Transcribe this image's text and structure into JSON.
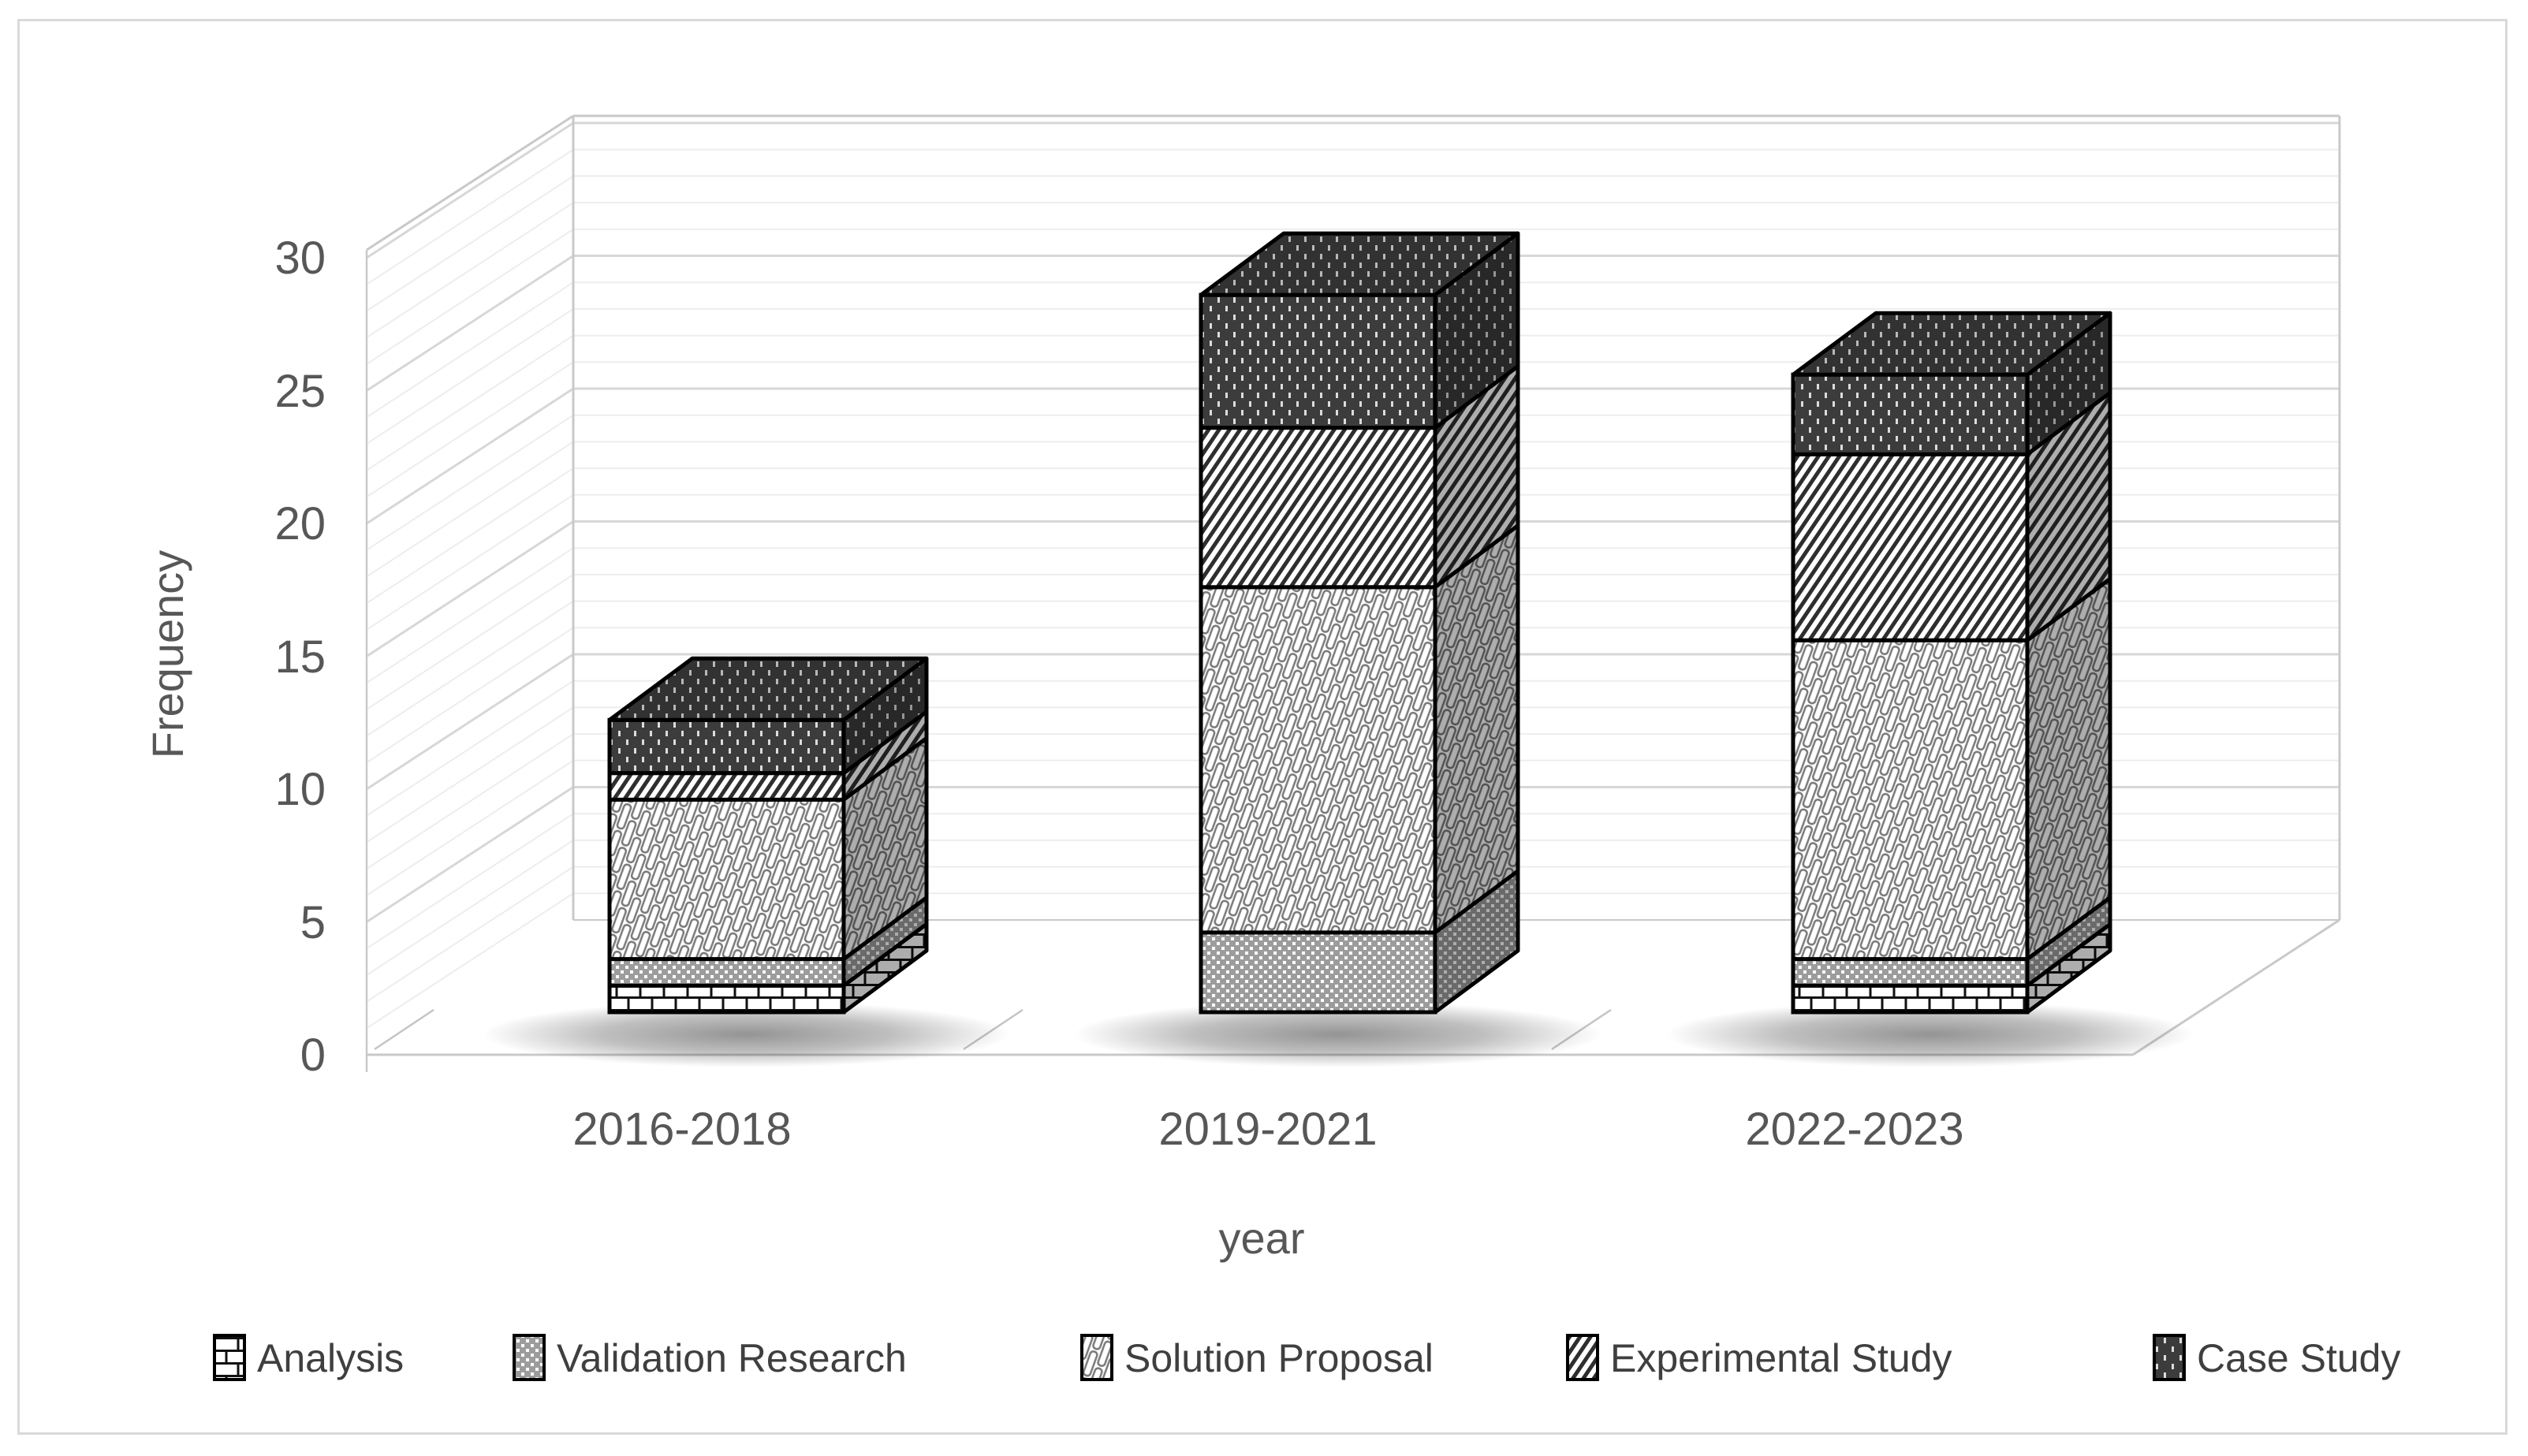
{
  "chart_data": {
    "type": "bar",
    "subtype": "3d-stacked-column",
    "title": "",
    "xlabel": "year",
    "ylabel": "Frequency",
    "categories": [
      "2016-2018",
      "2019-2021",
      "2022-2023"
    ],
    "series": [
      {
        "name": "Analysis",
        "pattern": "brick",
        "values": [
          1,
          0,
          1
        ]
      },
      {
        "name": "Validation Research",
        "pattern": "dotted-gray",
        "values": [
          1,
          3,
          1
        ]
      },
      {
        "name": "Solution Proposal",
        "pattern": "diagonal-weave",
        "values": [
          6,
          13,
          12
        ]
      },
      {
        "name": "Experimental Study",
        "pattern": "diagonal-stripes",
        "values": [
          1,
          6,
          7
        ]
      },
      {
        "name": "Case Study",
        "pattern": "dark-dotted",
        "values": [
          2,
          5,
          3
        ]
      }
    ],
    "totals": [
      11,
      27,
      24
    ],
    "yticks": [
      0,
      5,
      10,
      15,
      20,
      25,
      30
    ],
    "ylim": [
      0,
      30
    ],
    "minor_grid_step": 1,
    "major_grid_step": 5,
    "grid": "horizontal minor+major on back and left walls",
    "legend_position": "bottom",
    "colors": {
      "axis_text": "#575757",
      "legend_text": "#3f3f3f",
      "grid_minor": "#ededed",
      "grid_major": "#d7d7d7",
      "wall_edge": "#c9c9c9",
      "bar_outline": "#000000",
      "pattern_dark": "#2e2e2e",
      "pattern_gray": "#9c9c9c",
      "case_bg": "#3c3c3c",
      "background": "#ffffff"
    }
  }
}
